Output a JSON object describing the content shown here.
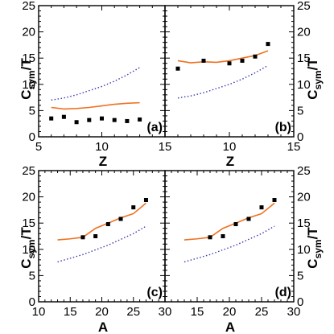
{
  "colors": {
    "line": "#f07020",
    "dotted": "#3a3ab0",
    "points": "#000000",
    "frame": "#000000"
  },
  "labels": {
    "ylabel_left_top": "C",
    "ylabel_left_top_sub": "sym",
    "ylabel_left_top_tail": "/T",
    "ylabel_right_top": "C",
    "ylabel_right_top_sub": "sym",
    "ylabel_right_top_tail": "/T",
    "ylabel_left_bottom": "C",
    "ylabel_left_bottom_sub": "sym",
    "ylabel_left_bottom_tail": "/T",
    "ylabel_right_bottom": "C",
    "ylabel_right_bottom_sub": "sym",
    "ylabel_right_bottom_tail": "/T",
    "xlabel_a": "Z",
    "xlabel_b": "Z",
    "xlabel_c": "A",
    "xlabel_d": "A"
  },
  "chart_data": [
    {
      "type": "line",
      "panel": "(a)",
      "xlabel": "Z",
      "ylabel": "Csym/T",
      "xlim": [
        5,
        15
      ],
      "ylim": [
        0,
        25
      ],
      "xticks": [
        5,
        10,
        15
      ],
      "yticks": [
        0,
        5,
        10,
        15,
        20,
        25
      ],
      "series": [
        {
          "style": "solid",
          "x": [
            6,
            7,
            8,
            9,
            10,
            11,
            12,
            13
          ],
          "y": [
            5.6,
            5.3,
            5.4,
            5.6,
            5.9,
            6.2,
            6.4,
            6.5
          ]
        },
        {
          "style": "dotted",
          "x": [
            6,
            7,
            8,
            9,
            10,
            11,
            12,
            13
          ],
          "y": [
            7.0,
            7.4,
            8.0,
            8.8,
            9.6,
            10.6,
            11.8,
            13.2
          ]
        },
        {
          "style": "markers",
          "x": [
            6,
            7,
            8,
            9,
            10,
            11,
            12,
            13
          ],
          "y": [
            3.5,
            3.8,
            2.8,
            3.2,
            3.5,
            3.2,
            3.0,
            3.3
          ]
        }
      ]
    },
    {
      "type": "line",
      "panel": "(b)",
      "xlabel": "Z",
      "ylabel": "Csym/T",
      "xlim": [
        5,
        15
      ],
      "ylim": [
        0,
        25
      ],
      "xticks": [
        5,
        10,
        15
      ],
      "yticks": [
        0,
        5,
        10,
        15,
        20,
        25
      ],
      "series": [
        {
          "style": "solid",
          "x": [
            6,
            7,
            8,
            9,
            10,
            11,
            12,
            13
          ],
          "y": [
            14.5,
            14.1,
            14.3,
            14.2,
            14.5,
            15.0,
            15.5,
            16.4
          ]
        },
        {
          "style": "dotted",
          "x": [
            6,
            7,
            8,
            9,
            10,
            11,
            12,
            13
          ],
          "y": [
            7.4,
            7.8,
            8.4,
            9.2,
            10.0,
            11.0,
            12.2,
            13.6
          ]
        },
        {
          "style": "markers",
          "x": [
            6,
            8,
            10,
            11,
            12,
            13
          ],
          "y": [
            13.0,
            14.5,
            14.0,
            14.5,
            15.3,
            17.7
          ]
        }
      ]
    },
    {
      "type": "line",
      "panel": "(c)",
      "xlabel": "A",
      "ylabel": "Csym/T",
      "xlim": [
        10,
        30
      ],
      "ylim": [
        0,
        25
      ],
      "xticks": [
        10,
        15,
        20,
        25,
        30
      ],
      "yticks": [
        0,
        5,
        10,
        15,
        20,
        25
      ],
      "series": [
        {
          "style": "solid",
          "x": [
            13,
            15,
            17,
            19,
            21,
            23,
            25,
            27
          ],
          "y": [
            11.8,
            12.0,
            12.3,
            14.0,
            15.0,
            16.0,
            16.8,
            18.8
          ]
        },
        {
          "style": "dotted",
          "x": [
            13,
            15,
            17,
            19,
            21,
            23,
            25,
            27
          ],
          "y": [
            7.6,
            8.3,
            9.0,
            9.9,
            10.8,
            11.9,
            13.0,
            14.4
          ]
        },
        {
          "style": "markers",
          "x": [
            17,
            19,
            21,
            23,
            25,
            27
          ],
          "y": [
            12.3,
            12.5,
            14.8,
            15.8,
            18.0,
            19.4
          ]
        }
      ]
    },
    {
      "type": "line",
      "panel": "(d)",
      "xlabel": "A",
      "ylabel": "Csym/T",
      "xlim": [
        10,
        30
      ],
      "ylim": [
        0,
        25
      ],
      "xticks": [
        10,
        15,
        20,
        25,
        30
      ],
      "yticks": [
        0,
        5,
        10,
        15,
        20,
        25
      ],
      "series": [
        {
          "style": "solid",
          "x": [
            13,
            15,
            17,
            19,
            21,
            23,
            25,
            27
          ],
          "y": [
            11.8,
            12.0,
            12.3,
            14.0,
            15.0,
            16.0,
            16.8,
            18.8
          ]
        },
        {
          "style": "dotted",
          "x": [
            13,
            15,
            17,
            19,
            21,
            23,
            25,
            27
          ],
          "y": [
            7.6,
            8.3,
            9.0,
            9.9,
            10.8,
            11.9,
            13.0,
            14.4
          ]
        },
        {
          "style": "markers",
          "x": [
            17,
            19,
            21,
            23,
            25,
            27
          ],
          "y": [
            12.3,
            12.5,
            14.8,
            15.8,
            18.0,
            19.4
          ]
        }
      ]
    }
  ]
}
